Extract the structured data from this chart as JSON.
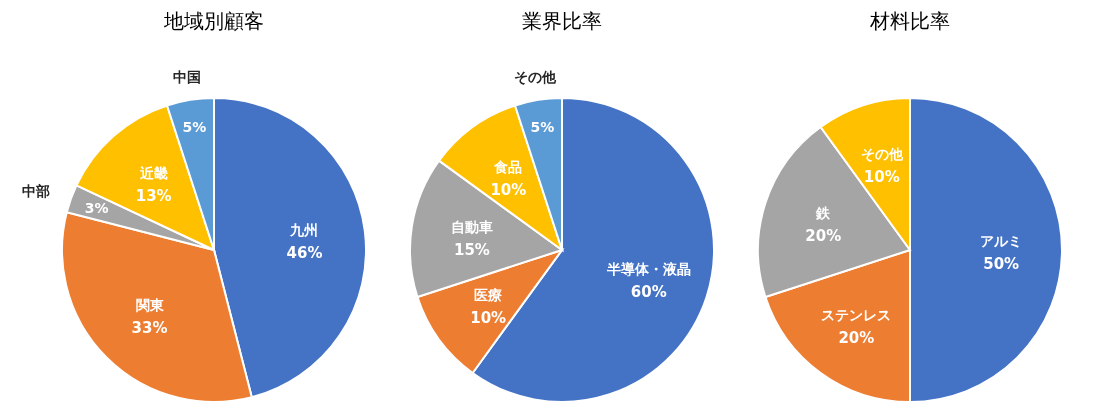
{
  "chart_data": [
    {
      "type": "pie",
      "title": "地域別顧客",
      "categories": [
        "九州",
        "関東",
        "中部",
        "近畿",
        "中国"
      ],
      "values": [
        46,
        33,
        3,
        13,
        5
      ],
      "value_labels": [
        "46%",
        "33%",
        "3%",
        "13%",
        "5%"
      ],
      "colors": [
        "#4472c4",
        "#ed7d31",
        "#a5a5a5",
        "#ffc000",
        "#5b9bd5"
      ]
    },
    {
      "type": "pie",
      "title": "業界比率",
      "categories": [
        "半導体・液晶",
        "医療",
        "自動車",
        "食品",
        "その他"
      ],
      "values": [
        60,
        10,
        15,
        10,
        5
      ],
      "value_labels": [
        "60%",
        "10%",
        "15%",
        "10%",
        "5%"
      ],
      "colors": [
        "#4472c4",
        "#ed7d31",
        "#a5a5a5",
        "#ffc000",
        "#5b9bd5"
      ]
    },
    {
      "type": "pie",
      "title": "材料比率",
      "categories": [
        "アルミ",
        "ステンレス",
        "鉄",
        "その他"
      ],
      "values": [
        50,
        20,
        20,
        10
      ],
      "value_labels": [
        "50%",
        "20%",
        "20%",
        "10%"
      ],
      "colors": [
        "#4472c4",
        "#ed7d31",
        "#a5a5a5",
        "#ffc000"
      ]
    }
  ]
}
